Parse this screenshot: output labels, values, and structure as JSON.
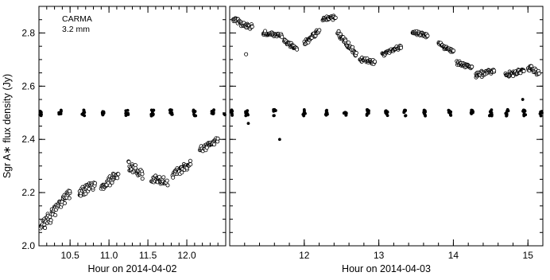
{
  "chart_data": [
    {
      "type": "scatter",
      "panel": "left",
      "title": "",
      "annotation": [
        "CARMA",
        "3.2 mm"
      ],
      "xlabel": "Hour on 2014-04-02",
      "ylabel": "Sgr A∗ flux density (Jy)",
      "xlim": [
        10.1,
        12.5
      ],
      "ylim": [
        2.0,
        2.9
      ],
      "xticks": [
        10.5,
        11.0,
        11.5,
        12.0
      ],
      "xtick_labels": [
        "10.5",
        "11.0",
        "11.5",
        "12.0"
      ],
      "yticks": [
        2.0,
        2.2,
        2.4,
        2.6,
        2.8
      ],
      "ytick_labels": [
        "2.0",
        "2.2",
        "2.4",
        "2.6",
        "2.8"
      ],
      "grid": false,
      "series": [
        {
          "marker": "open-circle",
          "segments": [
            {
              "x": [
                10.12,
                10.34
              ],
              "y": [
                2.07,
                2.14
              ],
              "spread": 0.025
            },
            {
              "x": [
                10.35,
                10.5
              ],
              "y": [
                2.16,
                2.2
              ],
              "spread": 0.025
            },
            {
              "x": [
                10.62,
                10.82
              ],
              "y": [
                2.2,
                2.23
              ],
              "spread": 0.02
            },
            {
              "x": [
                10.9,
                11.12
              ],
              "y": [
                2.22,
                2.27
              ],
              "spread": 0.02
            },
            {
              "x": [
                11.25,
                11.43
              ],
              "y": [
                2.3,
                2.27
              ],
              "spread": 0.02
            },
            {
              "x": [
                11.55,
                11.75
              ],
              "y": [
                2.25,
                2.24
              ],
              "spread": 0.018
            },
            {
              "x": [
                11.82,
                12.05
              ],
              "y": [
                2.27,
                2.31
              ],
              "spread": 0.018
            },
            {
              "x": [
                12.17,
                12.4
              ],
              "y": [
                2.36,
                2.4
              ],
              "spread": 0.015
            }
          ]
        },
        {
          "marker": "filled-circle",
          "level": 2.5,
          "clusters": [
            10.12,
            10.37,
            10.67,
            10.92,
            11.23,
            11.56,
            11.8,
            12.1,
            12.33,
            12.49
          ],
          "spread": 0.012
        }
      ]
    },
    {
      "type": "scatter",
      "panel": "right",
      "title": "",
      "xlabel": "Hour on 2014-04-03",
      "ylabel": "",
      "xlim": [
        11.0,
        15.2
      ],
      "ylim": [
        2.0,
        2.9
      ],
      "xticks": [
        12,
        13,
        14,
        15
      ],
      "xtick_labels": [
        "12",
        "13",
        "14",
        "15"
      ],
      "yticks": [
        2.0,
        2.2,
        2.4,
        2.6,
        2.8
      ],
      "grid": false,
      "series": [
        {
          "marker": "open-circle",
          "segments": [
            {
              "x": [
                11.05,
                11.3
              ],
              "y": [
                2.85,
                2.82
              ],
              "spread": 0.012
            },
            {
              "x": [
                11.45,
                11.7
              ],
              "y": [
                2.8,
                2.79
              ],
              "spread": 0.01
            },
            {
              "x": [
                11.73,
                11.9
              ],
              "y": [
                2.77,
                2.74
              ],
              "spread": 0.01
            },
            {
              "x": [
                12.0,
                12.2
              ],
              "y": [
                2.76,
                2.81
              ],
              "spread": 0.01
            },
            {
              "x": [
                12.25,
                12.42
              ],
              "y": [
                2.85,
                2.86
              ],
              "spread": 0.01
            },
            {
              "x": [
                12.45,
                12.7
              ],
              "y": [
                2.8,
                2.72
              ],
              "spread": 0.012
            },
            {
              "x": [
                12.75,
                12.95
              ],
              "y": [
                2.7,
                2.69
              ],
              "spread": 0.01
            },
            {
              "x": [
                13.05,
                13.3
              ],
              "y": [
                2.72,
                2.75
              ],
              "spread": 0.01
            },
            {
              "x": [
                13.45,
                13.65
              ],
              "y": [
                2.8,
                2.79
              ],
              "spread": 0.01
            },
            {
              "x": [
                13.8,
                14.0
              ],
              "y": [
                2.76,
                2.73
              ],
              "spread": 0.01
            },
            {
              "x": [
                14.05,
                14.25
              ],
              "y": [
                2.69,
                2.67
              ],
              "spread": 0.01
            },
            {
              "x": [
                14.3,
                14.55
              ],
              "y": [
                2.64,
                2.66
              ],
              "spread": 0.012
            },
            {
              "x": [
                14.7,
                14.95
              ],
              "y": [
                2.64,
                2.66
              ],
              "spread": 0.012
            },
            {
              "x": [
                15.0,
                15.15
              ],
              "y": [
                2.67,
                2.65
              ],
              "spread": 0.012
            }
          ],
          "outliers": [
            {
              "x": [
                11.22
              ],
              "y": [
                2.72
              ]
            }
          ]
        },
        {
          "marker": "filled-circle",
          "level": 2.5,
          "clusters": [
            11.02,
            11.23,
            11.6,
            12.0,
            12.3,
            12.55,
            12.85,
            13.1,
            13.35,
            13.62,
            13.95,
            14.25,
            14.5,
            14.72,
            14.95,
            15.18
          ],
          "spread": 0.012,
          "outliers": [
            {
              "x": [
                11.25,
                11.67,
                14.93
              ],
              "y": [
                2.46,
                2.4,
                2.55
              ]
            }
          ]
        }
      ]
    }
  ]
}
